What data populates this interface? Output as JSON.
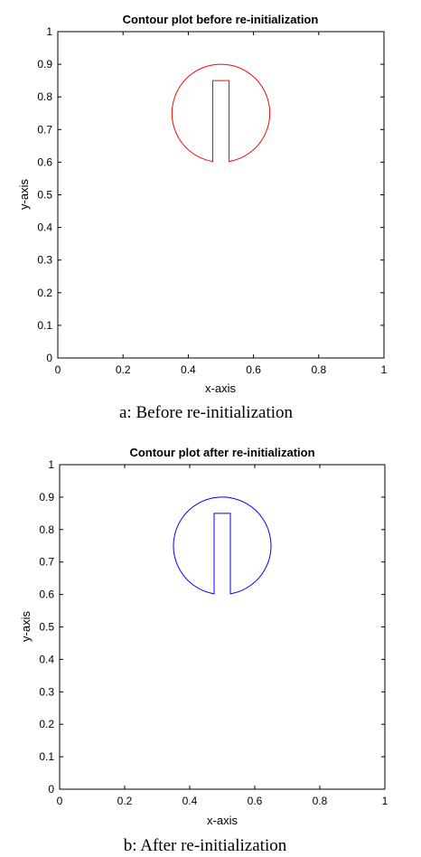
{
  "chart_data": [
    {
      "type": "contour",
      "title": "Contour plot before re-initialization",
      "xlabel": "x-axis",
      "ylabel": "y-axis",
      "xlim": [
        0,
        1
      ],
      "ylim": [
        0,
        1
      ],
      "xticks": [
        "0",
        "0.2",
        "0.4",
        "0.6",
        "0.8",
        "1"
      ],
      "yticks": [
        "0",
        "0.1",
        "0.2",
        "0.3",
        "0.4",
        "0.5",
        "0.6",
        "0.7",
        "0.8",
        "0.9",
        "1"
      ],
      "grid": false,
      "caption": "a: Before re-initialization",
      "color": "#ff0000",
      "contour": {
        "center": [
          0.5,
          0.75
        ],
        "radius": 0.15,
        "slot_x": [
          0.475,
          0.525
        ],
        "slot_top": 0.85
      }
    },
    {
      "type": "contour",
      "title": "Contour plot after re-initialization",
      "xlabel": "x-axis",
      "ylabel": "y-axis",
      "xlim": [
        0,
        1
      ],
      "ylim": [
        0,
        1
      ],
      "xticks": [
        "0",
        "0.2",
        "0.4",
        "0.6",
        "0.8",
        "1"
      ],
      "yticks": [
        "0",
        "0.1",
        "0.2",
        "0.3",
        "0.4",
        "0.5",
        "0.6",
        "0.7",
        "0.8",
        "0.9",
        "1"
      ],
      "grid": false,
      "caption": "b: After re-initialization",
      "color": "#0000ff",
      "contour": {
        "center": [
          0.5,
          0.75
        ],
        "radius": 0.15,
        "slot_x": [
          0.475,
          0.525
        ],
        "slot_top": 0.85
      }
    }
  ]
}
